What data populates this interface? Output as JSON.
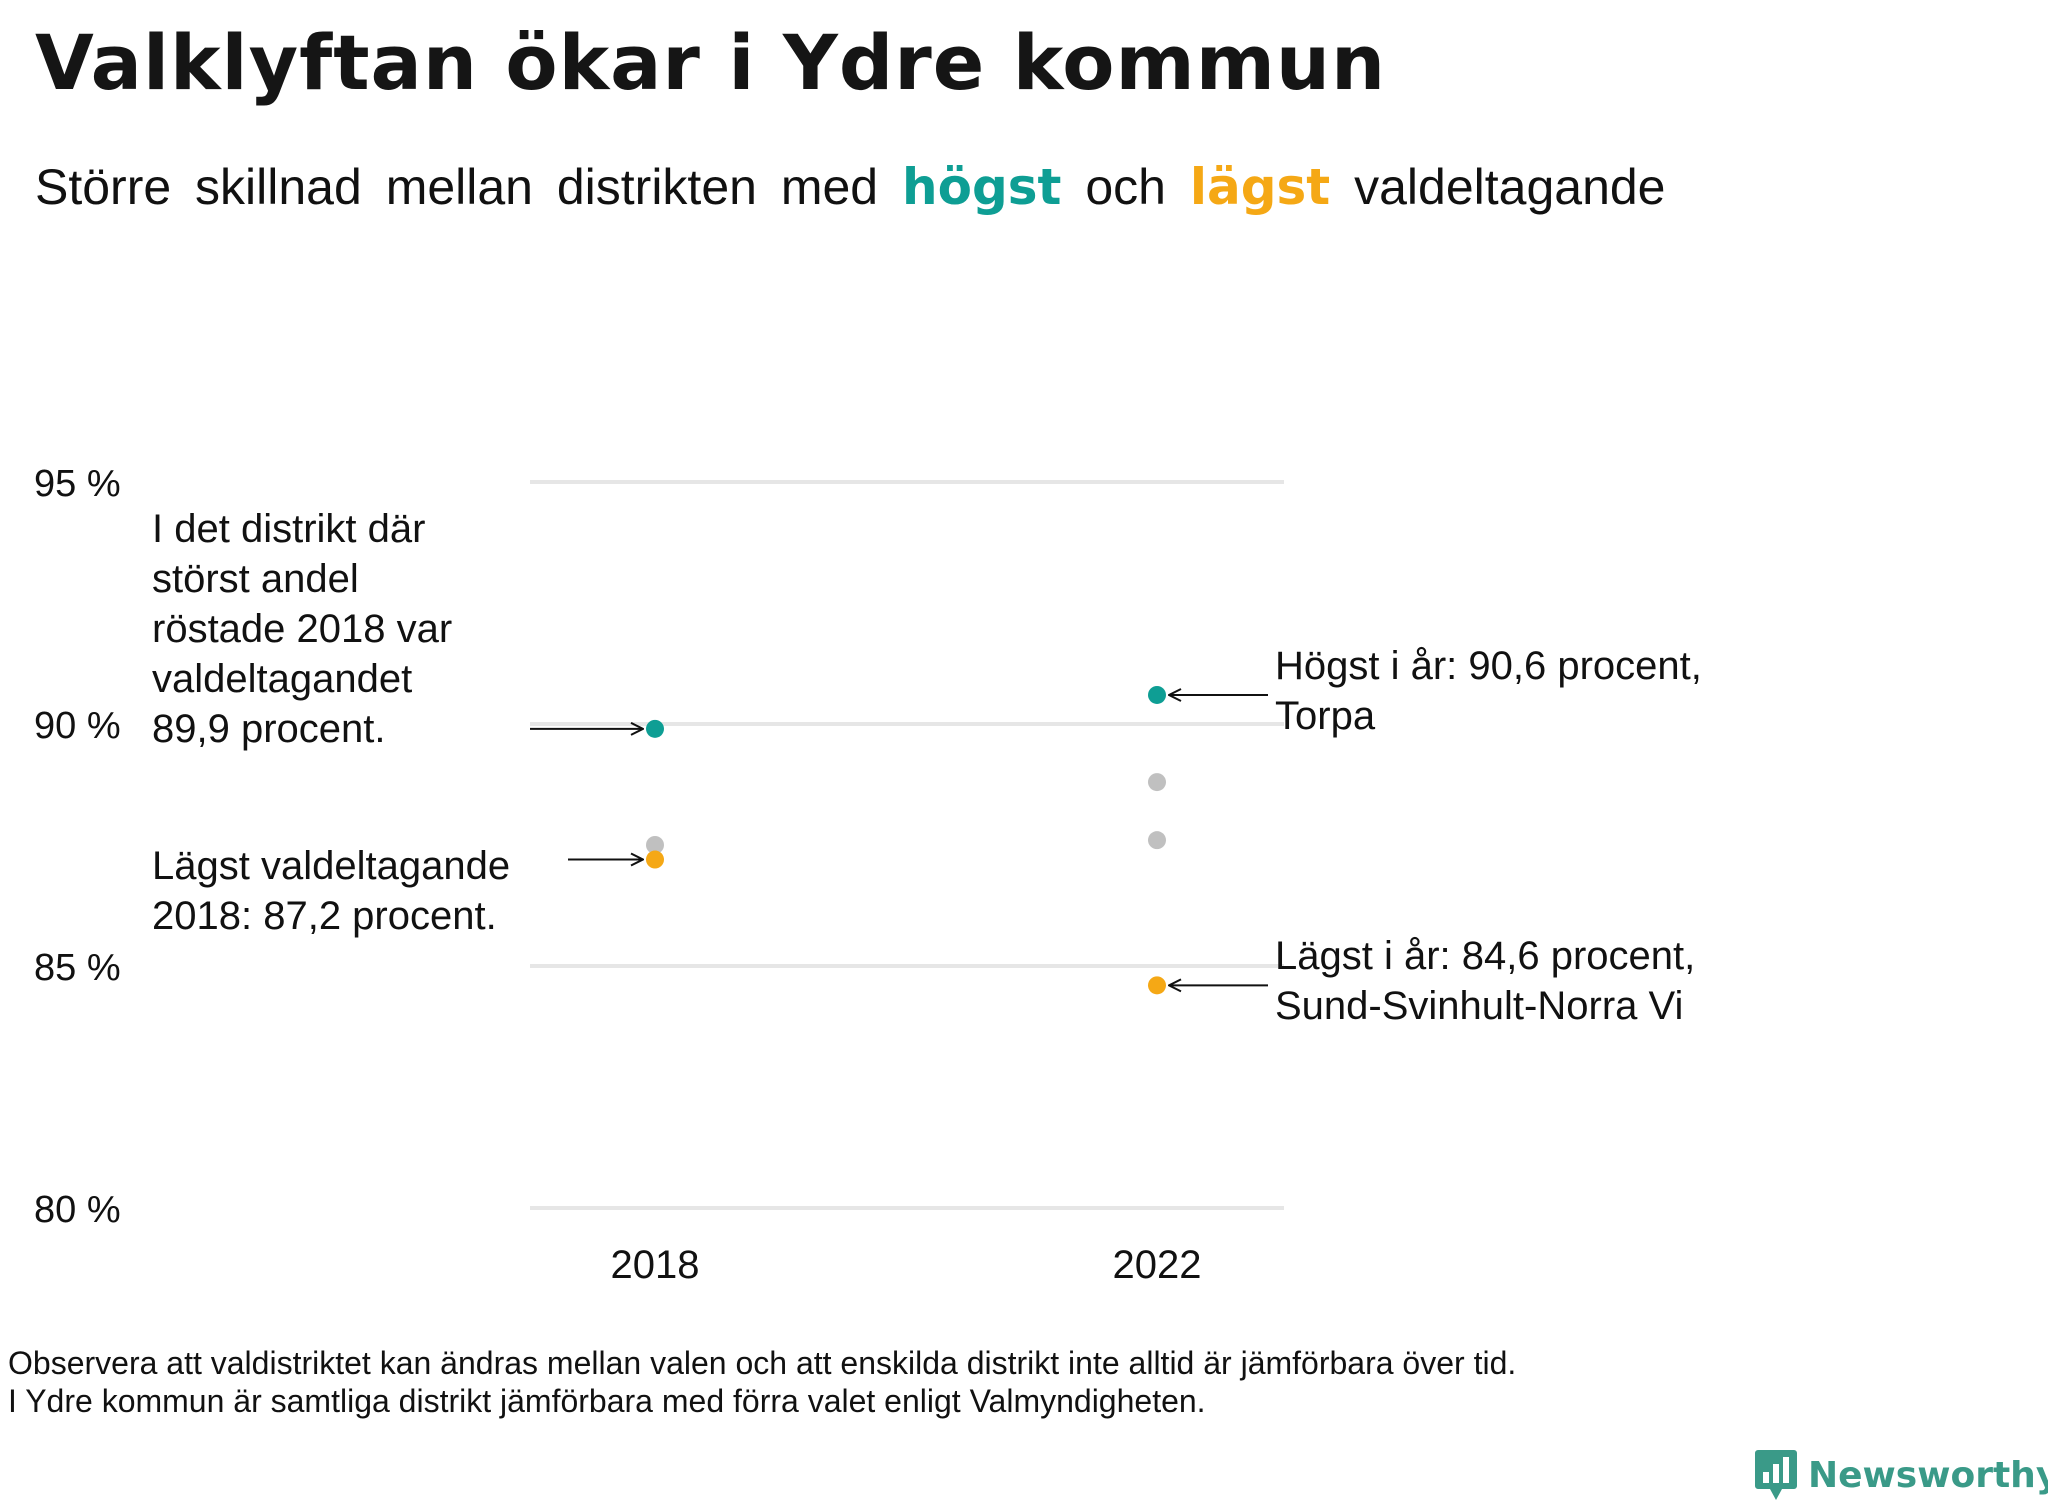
{
  "title": "Valklyftan ökar i Ydre kommun",
  "subtitle": {
    "part1": "Större skillnad mellan distrikten med",
    "highlight_high": "högst",
    "connector": "och",
    "highlight_low": "lägst",
    "part2": "valdeltagande"
  },
  "colors": {
    "high": "#0e9e94",
    "low": "#f5a815",
    "other": "#c0c0c0",
    "grid": "#e6e6e6"
  },
  "chart_data": {
    "type": "scatter",
    "categories": [
      "2018",
      "2022"
    ],
    "ylim": [
      80,
      95
    ],
    "yticks": [
      95,
      90,
      85,
      80
    ],
    "ytick_labels": [
      "95 %",
      "90 %",
      "85 %",
      "80 %"
    ],
    "grid": true,
    "points": [
      {
        "x": "2018",
        "y": 89.9,
        "role": "high"
      },
      {
        "x": "2018",
        "y": 87.5,
        "role": "other"
      },
      {
        "x": "2018",
        "y": 87.2,
        "role": "low"
      },
      {
        "x": "2022",
        "y": 90.6,
        "role": "high"
      },
      {
        "x": "2022",
        "y": 88.8,
        "role": "other"
      },
      {
        "x": "2022",
        "y": 87.6,
        "role": "other"
      },
      {
        "x": "2022",
        "y": 84.6,
        "role": "low"
      }
    ],
    "annotations": {
      "high_2018": "I det distrikt där\nstörst andel\nröstade 2018 var\nvaldeltagandet\n89,9 procent.",
      "low_2018": "Lägst valdeltagande\n2018: 87,2 procent.",
      "high_2022": "Högst i år: 90,6 procent,\nTorpa",
      "low_2022": "Lägst i år: 84,6 procent,\nSund-Svinhult-Norra Vi"
    }
  },
  "footnote": "Observera att valdistriktet kan ändras mellan valen och att enskilda distrikt inte alltid är jämförbara över tid.\nI Ydre kommun är samtliga distrikt jämförbara med förra valet enligt Valmyndigheten.",
  "logo": {
    "text": "Newsworthy",
    "icon": "newsworthy-logo-icon"
  }
}
